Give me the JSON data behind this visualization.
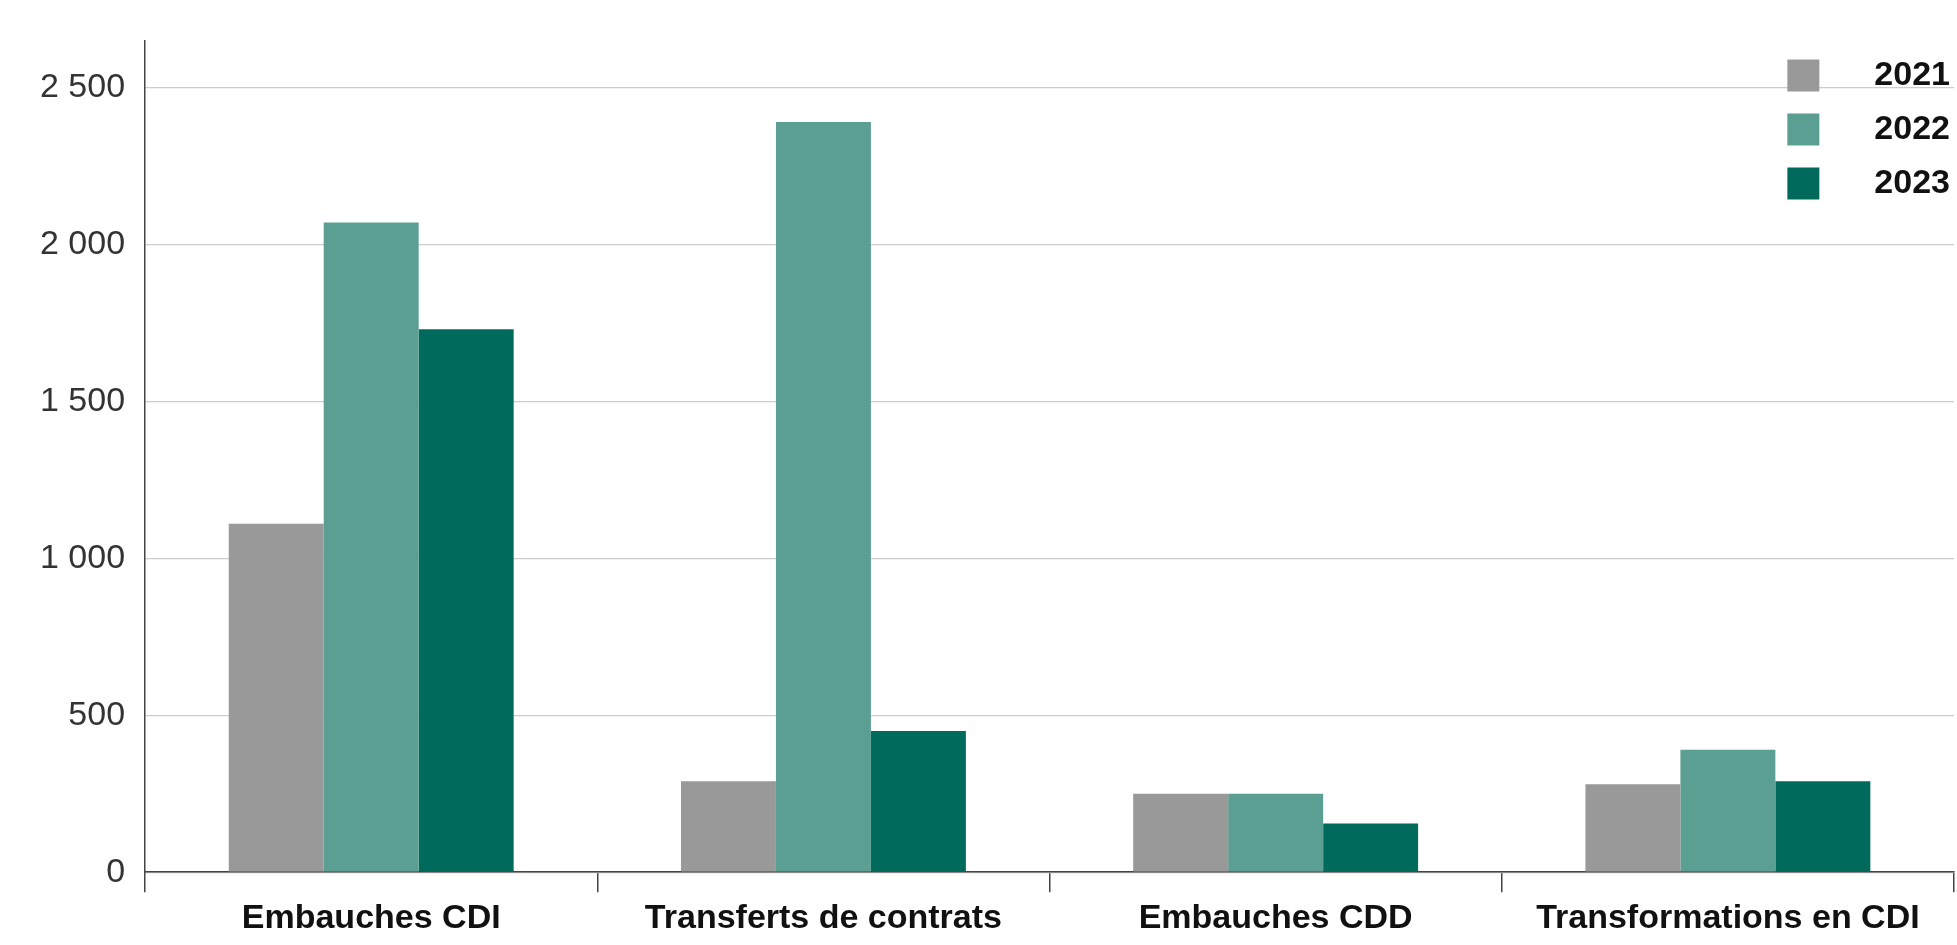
{
  "chart_data": {
    "type": "bar",
    "categories": [
      "Embauches CDI",
      "Transferts de contrats",
      "Embauches CDD",
      "Transformations en CDI"
    ],
    "series": [
      {
        "name": "2021",
        "color": "#999999",
        "values": [
          1110,
          290,
          250,
          280
        ]
      },
      {
        "name": "2022",
        "color": "#5a9f91",
        "values": [
          2070,
          2390,
          250,
          390
        ]
      },
      {
        "name": "2023",
        "color": "#006b5c",
        "values": [
          1730,
          450,
          155,
          290
        ]
      }
    ],
    "ylim": [
      0,
      2650
    ],
    "yticks": [
      0,
      500,
      {
        "value": 1000,
        "label": "1 000"
      },
      {
        "value": 1500,
        "label": "1 500"
      },
      {
        "value": 2000,
        "label": "2 000"
      },
      {
        "value": 2500,
        "label": "2 500"
      }
    ],
    "grid": "y",
    "legend": "top right"
  }
}
